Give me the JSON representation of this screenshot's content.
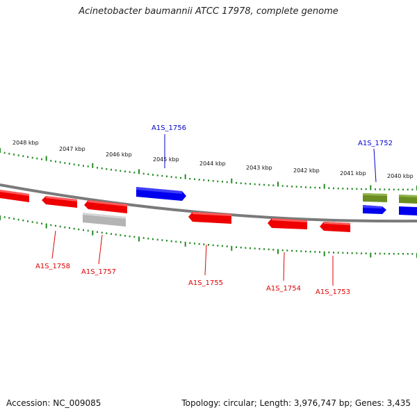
{
  "title": "Acinetobacter baumannii ATCC 17978, complete genome",
  "footer": {
    "accession": "Accession: NC_009085",
    "summary": "Topology: circular; Length: 3,976,747 bp; Genes: 3,435"
  },
  "colors": {
    "forward_gene": "#0000ee",
    "reverse_gene": "#ee0000",
    "pseudo_gene": "#b4b4b4",
    "other_feature": "#6b8e23",
    "scale_ticks": "#228b22",
    "backbone": "#7a7a7a"
  },
  "scale_labels": [
    "2048 kbp",
    "2047 kbp",
    "2046 kbp",
    "2045 kbp",
    "2044 kbp",
    "2043 kbp",
    "2042 kbp",
    "2041 kbp",
    "2040 kbp"
  ],
  "gene_labels": {
    "forward": [
      "A1S_1756",
      "A1S_1752"
    ],
    "reverse": [
      "A1S_1758",
      "A1S_1757",
      "A1S_1755",
      "A1S_1754",
      "A1S_1753"
    ]
  }
}
